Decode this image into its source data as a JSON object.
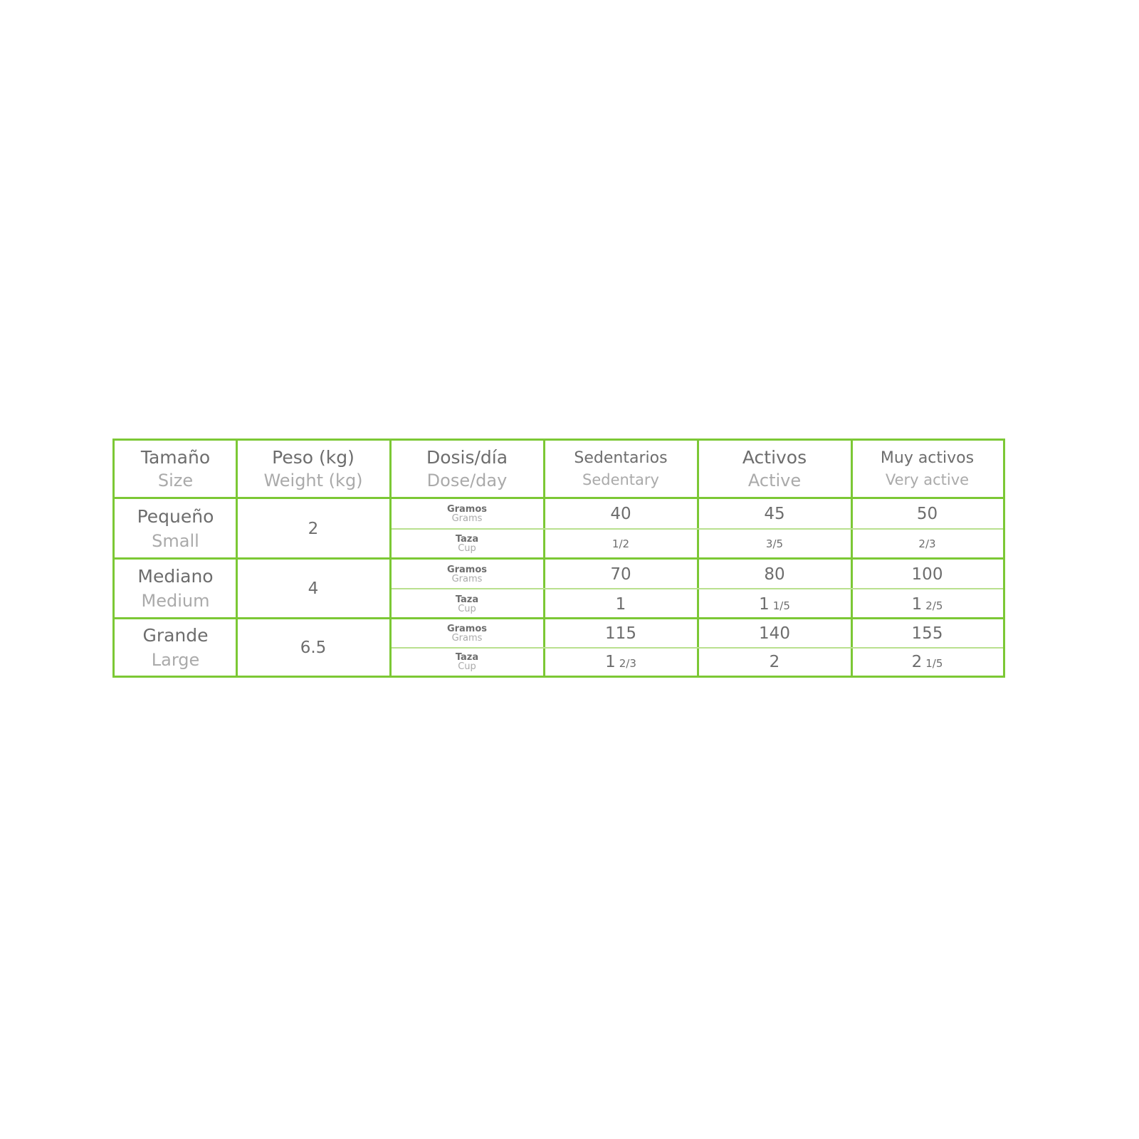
{
  "colors": {
    "border": "#7cc835",
    "subline": "#b9e08f",
    "text": "#6d6d6d",
    "secondary_text": "#aaaaaa"
  },
  "headers": [
    {
      "es": "Tamaño",
      "en": "Size"
    },
    {
      "es": "Peso (kg)",
      "en": "Weight (kg)"
    },
    {
      "es": "Dosis/día",
      "en": "Dose/day"
    },
    {
      "es": "Sedentarios",
      "en": "Sedentary"
    },
    {
      "es": "Activos",
      "en": "Active"
    },
    {
      "es": "Muy activos",
      "en": "Very active"
    }
  ],
  "units": {
    "grams_es": "Gramos",
    "grams_en": "Grams",
    "cup_es": "Taza",
    "cup_en": "Cup"
  },
  "rows": [
    {
      "size_es": "Pequeño",
      "size_en": "Small",
      "weight": "2",
      "grams": [
        "40",
        "45",
        "50"
      ],
      "cup": [
        {
          "whole": "",
          "frac": "1/2"
        },
        {
          "whole": "",
          "frac": "3/5"
        },
        {
          "whole": "",
          "frac": "2/3"
        }
      ]
    },
    {
      "size_es": "Mediano",
      "size_en": "Medium",
      "weight": "4",
      "grams": [
        "70",
        "80",
        "100"
      ],
      "cup": [
        {
          "whole": "1",
          "frac": ""
        },
        {
          "whole": "1",
          "frac": "1/5"
        },
        {
          "whole": "1",
          "frac": "2/5"
        }
      ]
    },
    {
      "size_es": "Grande",
      "size_en": "Large",
      "weight": "6.5",
      "grams": [
        "115",
        "140",
        "155"
      ],
      "cup": [
        {
          "whole": "1",
          "frac": "2/3"
        },
        {
          "whole": "2",
          "frac": ""
        },
        {
          "whole": "2",
          "frac": "1/5"
        }
      ]
    }
  ]
}
